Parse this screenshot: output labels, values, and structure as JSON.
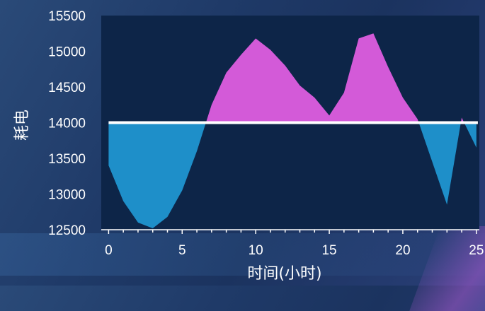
{
  "chart_data": {
    "type": "area",
    "xlabel": "时间(小时)",
    "ylabel": "耗电",
    "xlim": [
      -0.5,
      25.2
    ],
    "ylim": [
      12500,
      15500
    ],
    "xticks": [
      0,
      5,
      10,
      15,
      20,
      25
    ],
    "yticks": [
      12500,
      13000,
      13500,
      14000,
      14500,
      15000,
      15500
    ],
    "baseline": 14000,
    "grid": false,
    "colors": {
      "plot_background": "#0d2548",
      "above_fill": "#d35ad8",
      "below_fill": "#1e8fc9",
      "baseline_stroke": "#ffffff"
    },
    "series": [
      {
        "x": [
          0,
          1,
          2,
          3,
          4,
          5,
          6,
          7,
          8,
          9,
          10,
          11,
          12,
          13,
          14,
          15,
          16,
          17,
          18,
          19,
          20,
          21,
          22,
          23,
          24,
          25
        ],
        "values": [
          13400,
          12900,
          12600,
          12520,
          12680,
          13050,
          13600,
          14250,
          14700,
          14950,
          15180,
          15020,
          14800,
          14520,
          14350,
          14100,
          14420,
          15180,
          15250,
          14780,
          14350,
          14050,
          13450,
          12850,
          14070,
          13650
        ]
      }
    ]
  }
}
